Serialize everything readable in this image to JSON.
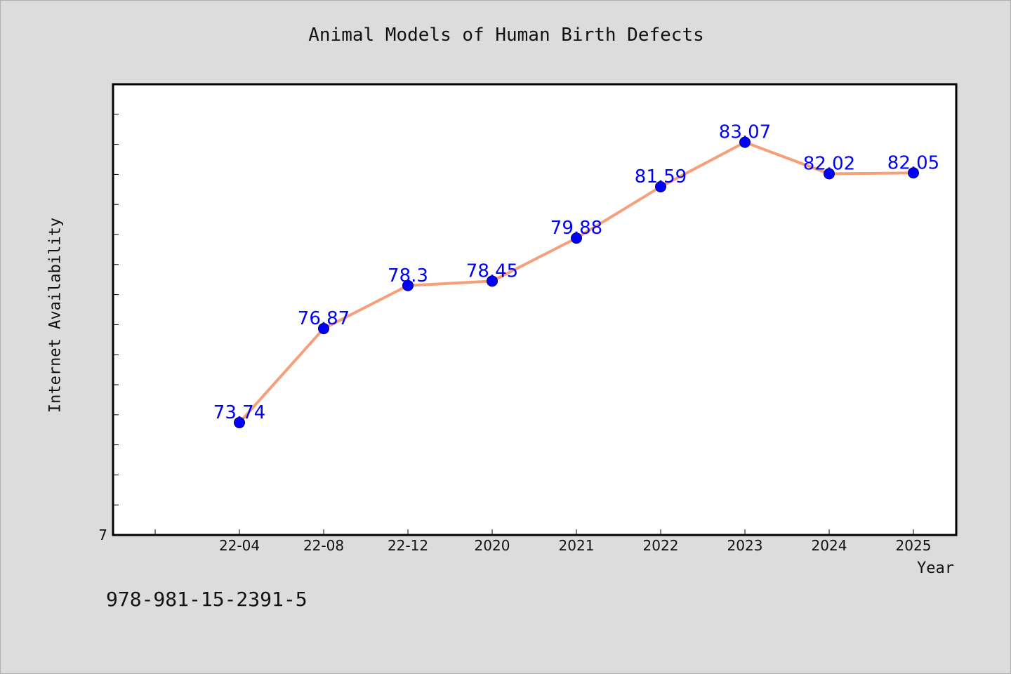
{
  "colors": {
    "line": "#f5a07a",
    "marker": "#0000ff",
    "data_label": "#0000ff"
  },
  "footer_text": "978-981-15-2391-5",
  "chart_data": {
    "type": "line",
    "title": "Animal Models of Human Birth Defects",
    "xlabel": "Year",
    "ylabel": "Internet Availability",
    "categories": [
      "22-04",
      "22-08",
      "22-12",
      "2020",
      "2021",
      "2022",
      "2023",
      "2024",
      "2025"
    ],
    "series": [
      {
        "values": [
          73.74,
          76.87,
          78.3,
          78.45,
          79.88,
          81.59,
          83.07,
          82.02,
          82.05
        ]
      }
    ],
    "y_tick_labels": [
      {
        "value": 70,
        "label": "7"
      }
    ],
    "ylim": [
      70,
      85
    ],
    "ytick_step": 1,
    "grid": false,
    "legend": "none",
    "data_labels": true
  }
}
